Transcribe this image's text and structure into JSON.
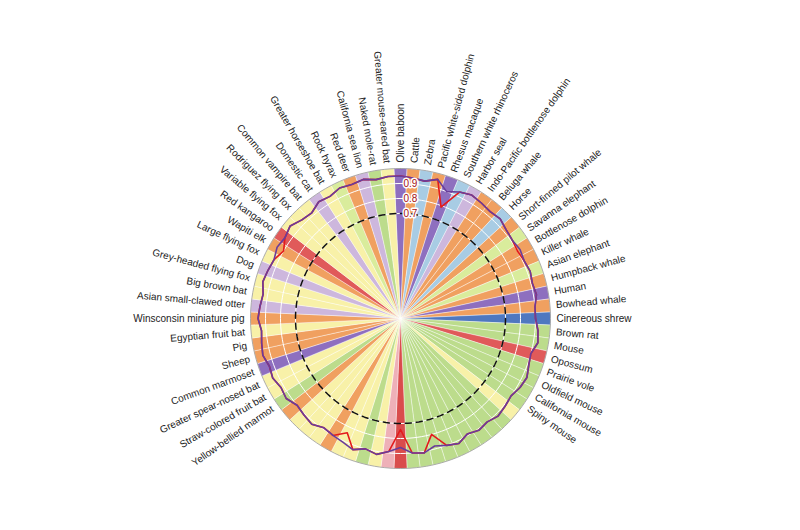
{
  "chart_data": {
    "type": "radar",
    "categories": [
      "Olive baboon",
      "Cattle",
      "Zebra",
      "Pacific white-sided dolphin",
      "Rhesus macaque",
      "Southern white rhinoceros",
      "Harbor seal",
      "Indo-Pacific bottlenose dolphin",
      "Beluga whale",
      "Horse",
      "Short-finned pilot whale",
      "Savanna elephant",
      "Bottlenose dolphin",
      "Killer whale",
      "Asian elephant",
      "Humpback whale",
      "Human",
      "Bowhead whale",
      "Cinereous shrew",
      "Brown rat",
      "Mouse",
      "Opossum",
      "Prairie vole",
      "Oldfield mouse",
      "California mouse",
      "Spiny mouse",
      null,
      null,
      null,
      null,
      null,
      null,
      null,
      null,
      null,
      null,
      null,
      null,
      null,
      null,
      null,
      null,
      null,
      null,
      null,
      null,
      null,
      "Yellow-bellied marmot",
      "Straw-colored fruit bat",
      "Greater spear-nosed bat",
      "Common marmoset",
      "Sheep",
      "Pig",
      "Egyptian fruit bat",
      "Winsconsin miniature pig",
      "Asian small-clawed otter",
      "Big brown bat",
      "Grey-headed flying fox",
      "Dog",
      "Large flying fox",
      "Wapiti elk",
      "Red kangaroo",
      "Variable flying fox",
      "Rodriguez flying fox",
      "Common vampire bat",
      "Domestic cat",
      "Greater horseshoe bat",
      "Rock hyrax",
      "Red deer",
      "California sea lion",
      "Naked mole-rat",
      "Greater mouse-eared bat"
    ],
    "colors": [
      "#8e6fbf",
      "#f0a060",
      "#a8cce4",
      "#f0a060",
      "#8e6fbf",
      "#a8cce4",
      "#cdb7dd",
      "#f0a060",
      "#f0a060",
      "#a8cce4",
      "#f0a060",
      "#d9ec9c",
      "#f0a060",
      "#f0a060",
      "#d9ec9c",
      "#f0a060",
      "#8e6fbf",
      "#f0a060",
      "#4f78c0",
      "#bcdc8c",
      "#bcdc8c",
      "#e05a5a",
      "#bcdc8c",
      "#bcdc8c",
      "#bcdc8c",
      "#bcdc8c",
      "#f8f1a8",
      "#bcdc8c",
      "#bcdc8c",
      "#bcdc8c",
      "#bcdc8c",
      "#bcdc8c",
      "#bcdc8c",
      "#bcdc8c",
      "#bcdc8c",
      "#bcdc8c",
      "#d94c4c",
      "#eeb0b8",
      "#f8f1a8",
      "#bcdc8c",
      "#f8f1a8",
      "#f8f1a8",
      "#f0a060",
      "#f8f1a8",
      "#f8f1a8",
      "#f8f1a8",
      "#f0a060",
      "#bcdc8c",
      "#f8f1a8",
      "#f8f1a8",
      "#8e6fbf",
      "#f0a060",
      "#f0a060",
      "#f8f1a8",
      "#f0a060",
      "#cdb7dd",
      "#f8f1a8",
      "#f8f1a8",
      "#cdb7dd",
      "#f8f1a8",
      "#f0a060",
      "#e05a5a",
      "#f8f1a8",
      "#f8f1a8",
      "#f8f1a8",
      "#cdb7dd",
      "#f8f1a8",
      "#d9ec9c",
      "#f0a060",
      "#cdb7dd",
      "#bcdc8c",
      "#f8f1a8"
    ],
    "series": [
      {
        "color": "#e31a1c",
        "values": [
          0.95,
          0.94,
          0.93,
          0.96,
          0.79,
          0.93,
          0.95,
          0.94,
          0.93,
          0.94,
          0.92,
          0.91,
          0.9,
          0.91,
          0.92,
          0.91,
          0.92,
          0.9,
          0.9,
          0.92,
          0.93,
          0.9,
          0.91,
          0.93,
          0.92,
          0.9,
          0.91,
          0.92,
          0.9,
          0.91,
          0.89,
          0.92,
          0.9,
          0.8,
          0.91,
          0.9,
          0.74,
          0.89,
          0.92,
          0.9,
          0.93,
          0.84,
          0.9,
          0.89,
          0.92,
          0.91,
          0.9,
          0.93,
          0.92,
          0.94,
          0.93,
          0.95,
          0.94,
          0.93,
          0.95,
          0.94,
          0.93,
          0.95,
          0.94,
          0.93,
          0.9,
          0.94,
          0.96,
          0.93,
          0.92,
          0.95,
          0.94,
          0.96,
          0.95,
          0.96,
          0.94,
          0.95
        ]
      },
      {
        "color": "#6a3d9a",
        "values": [
          0.95,
          0.94,
          0.93,
          0.96,
          0.9,
          0.93,
          0.95,
          0.94,
          0.93,
          0.94,
          0.92,
          0.91,
          0.92,
          0.91,
          0.92,
          0.91,
          0.92,
          0.9,
          0.9,
          0.92,
          0.93,
          0.9,
          0.91,
          0.93,
          0.92,
          0.9,
          0.91,
          0.92,
          0.9,
          0.91,
          0.89,
          0.92,
          0.9,
          0.88,
          0.91,
          0.9,
          0.86,
          0.89,
          0.92,
          0.9,
          0.93,
          0.91,
          0.9,
          0.89,
          0.92,
          0.91,
          0.9,
          0.93,
          0.92,
          0.94,
          0.93,
          0.95,
          0.94,
          0.93,
          0.95,
          0.94,
          0.93,
          0.95,
          0.94,
          0.93,
          0.95,
          0.94,
          0.96,
          0.93,
          0.92,
          0.95,
          0.94,
          0.96,
          0.95,
          0.96,
          0.94,
          0.95
        ]
      }
    ],
    "ylim": [
      0,
      1
    ],
    "yticks": [
      0.7,
      0.8,
      0.9
    ],
    "reference_circle": 0.7,
    "grid": true
  }
}
